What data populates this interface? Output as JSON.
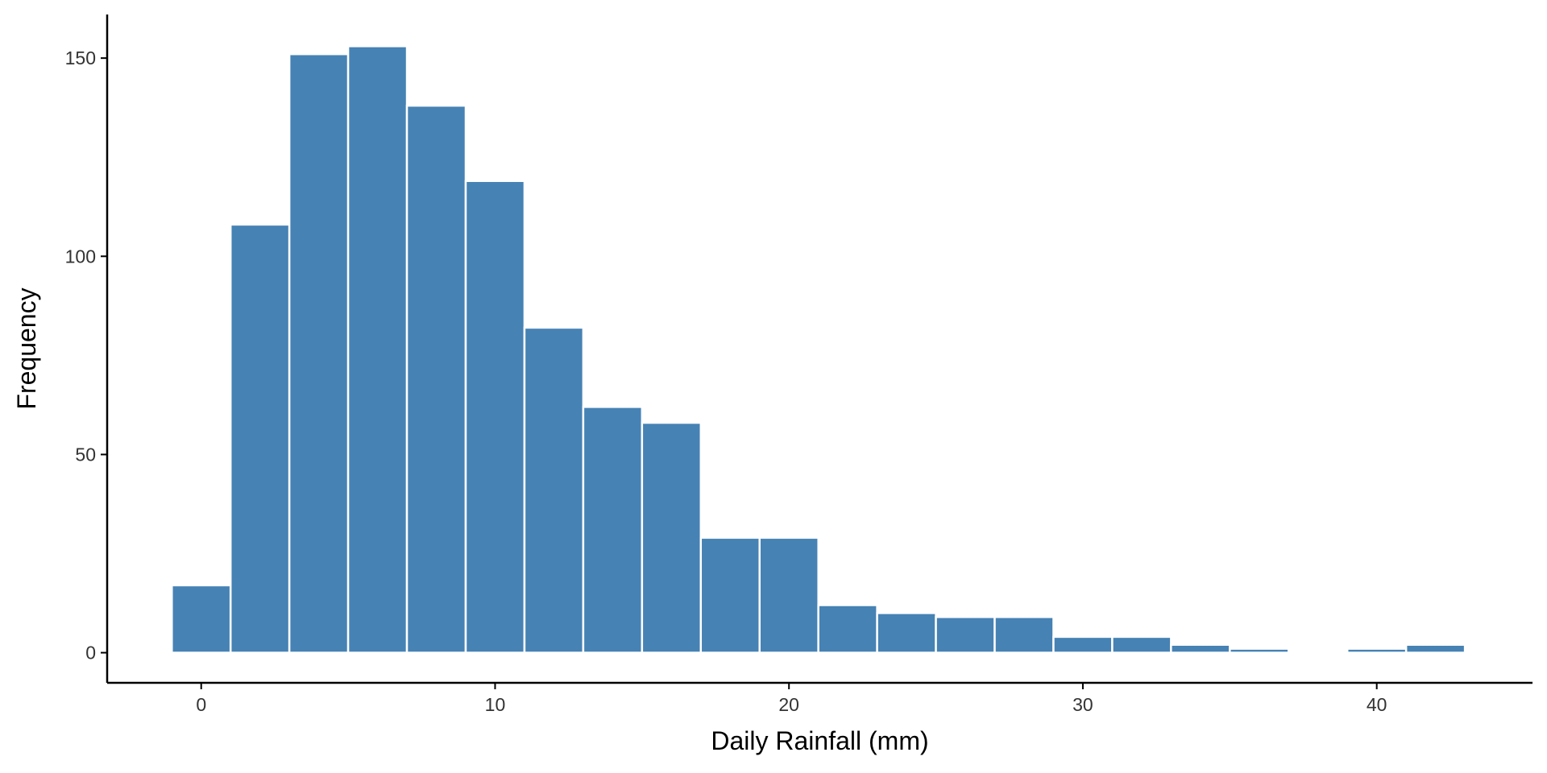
{
  "chart_data": {
    "type": "bar",
    "title": "",
    "xlabel": "Daily Rainfall (mm)",
    "ylabel": "Frequency",
    "bin_width": 2,
    "bins": [
      {
        "x0": -1,
        "x1": 1,
        "count": 17
      },
      {
        "x0": 1,
        "x1": 3,
        "count": 108
      },
      {
        "x0": 3,
        "x1": 5,
        "count": 151
      },
      {
        "x0": 5,
        "x1": 7,
        "count": 153
      },
      {
        "x0": 7,
        "x1": 9,
        "count": 138
      },
      {
        "x0": 9,
        "x1": 11,
        "count": 119
      },
      {
        "x0": 11,
        "x1": 13,
        "count": 82
      },
      {
        "x0": 13,
        "x1": 15,
        "count": 62
      },
      {
        "x0": 15,
        "x1": 17,
        "count": 58
      },
      {
        "x0": 17,
        "x1": 19,
        "count": 29
      },
      {
        "x0": 19,
        "x1": 21,
        "count": 29
      },
      {
        "x0": 21,
        "x1": 23,
        "count": 12
      },
      {
        "x0": 23,
        "x1": 25,
        "count": 10
      },
      {
        "x0": 25,
        "x1": 27,
        "count": 9
      },
      {
        "x0": 27,
        "x1": 29,
        "count": 9
      },
      {
        "x0": 29,
        "x1": 31,
        "count": 4
      },
      {
        "x0": 31,
        "x1": 33,
        "count": 4
      },
      {
        "x0": 33,
        "x1": 35,
        "count": 2
      },
      {
        "x0": 35,
        "x1": 37,
        "count": 1
      },
      {
        "x0": 37,
        "x1": 39,
        "count": 0
      },
      {
        "x0": 39,
        "x1": 41,
        "count": 1
      },
      {
        "x0": 41,
        "x1": 43,
        "count": 2
      }
    ],
    "xlim": [
      -3.2,
      45.3
    ],
    "ylim": [
      -7.6,
      161
    ],
    "x_ticks": [
      0,
      10,
      20,
      30,
      40
    ],
    "x_tick_labels": [
      "0",
      "10",
      "20",
      "30",
      "40"
    ],
    "y_ticks": [
      0,
      50,
      100,
      150
    ],
    "y_tick_labels": [
      "0",
      "50",
      "100",
      "150"
    ],
    "bar_color": "#4682B4",
    "bar_outline_color": "#ffffff",
    "grid": false,
    "legend": "none"
  }
}
